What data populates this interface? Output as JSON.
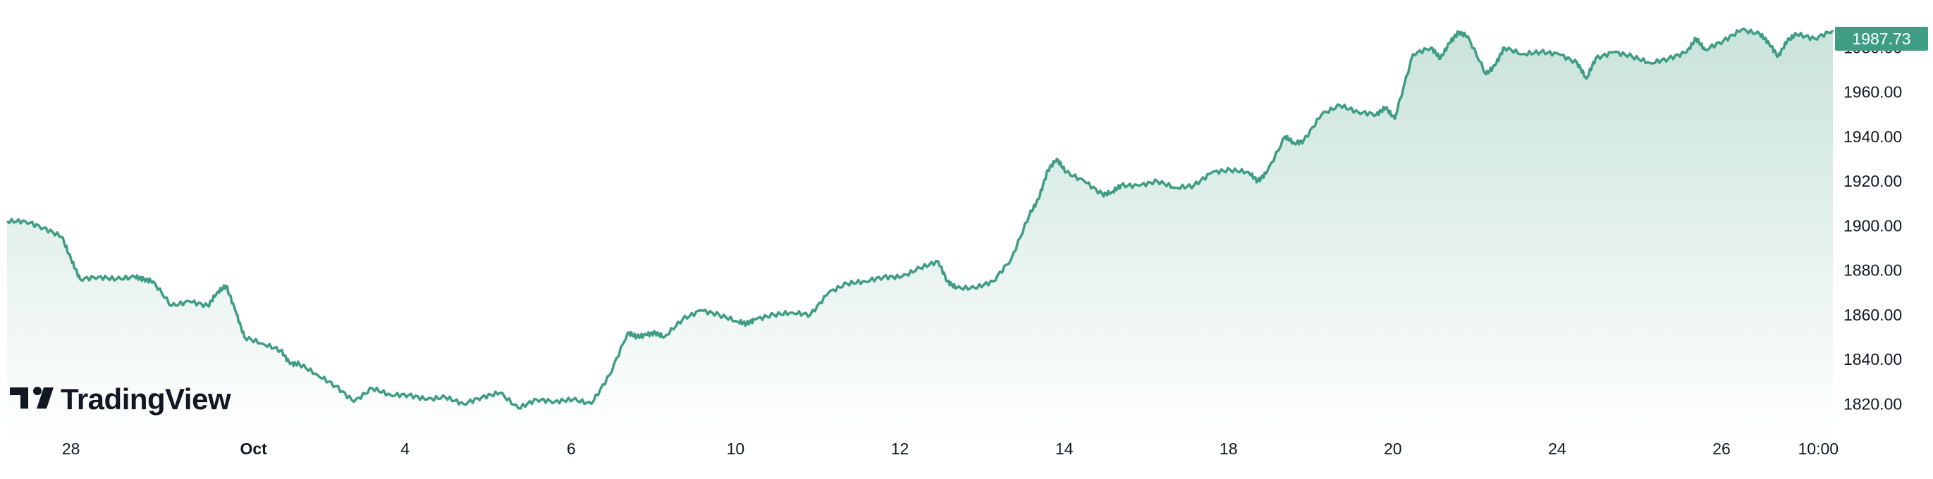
{
  "chart_data": {
    "type": "area",
    "colors": {
      "line": "#3f9d83",
      "fill_top": "#c9e3da",
      "fill_bottom": "#ffffff",
      "price_label_bg": "#3f9d83"
    },
    "ylim": [
      1810,
      1995
    ],
    "y_ticks": [
      "1820.00",
      "1840.00",
      "1860.00",
      "1880.00",
      "1900.00",
      "1920.00",
      "1940.00",
      "1960.00",
      "1980.00"
    ],
    "x_ticks": [
      {
        "label": "28",
        "pos": 0.035,
        "bold": false
      },
      {
        "label": "Oct",
        "pos": 0.135,
        "bold": true
      },
      {
        "label": "4",
        "pos": 0.218,
        "bold": false
      },
      {
        "label": "6",
        "pos": 0.309,
        "bold": false
      },
      {
        "label": "10",
        "pos": 0.399,
        "bold": false
      },
      {
        "label": "12",
        "pos": 0.489,
        "bold": false
      },
      {
        "label": "14",
        "pos": 0.579,
        "bold": false
      },
      {
        "label": "18",
        "pos": 0.669,
        "bold": false
      },
      {
        "label": "20",
        "pos": 0.759,
        "bold": false
      },
      {
        "label": "24",
        "pos": 0.849,
        "bold": false
      },
      {
        "label": "26",
        "pos": 0.939,
        "bold": false
      },
      {
        "label": "10:00",
        "pos": 0.992,
        "bold": false
      }
    ],
    "last_price": "1987.73",
    "series": [
      {
        "x": [
          0,
          0.01,
          0.02,
          0.03,
          0.035,
          0.04,
          0.05,
          0.06,
          0.07,
          0.075,
          0.08,
          0.09,
          0.1,
          0.11,
          0.115,
          0.12,
          0.125,
          0.13,
          0.14,
          0.15,
          0.155,
          0.16,
          0.17,
          0.18,
          0.19,
          0.2,
          0.21,
          0.22,
          0.23,
          0.24,
          0.25,
          0.26,
          0.27,
          0.28,
          0.29,
          0.3,
          0.31,
          0.32,
          0.33,
          0.34,
          0.345,
          0.35,
          0.355,
          0.36,
          0.37,
          0.38,
          0.39,
          0.4,
          0.405,
          0.41,
          0.42,
          0.43,
          0.44,
          0.45,
          0.46,
          0.47,
          0.48,
          0.49,
          0.5,
          0.51,
          0.515,
          0.52,
          0.53,
          0.54,
          0.55,
          0.56,
          0.565,
          0.57,
          0.575,
          0.58,
          0.59,
          0.6,
          0.605,
          0.61,
          0.62,
          0.63,
          0.64,
          0.65,
          0.66,
          0.67,
          0.68,
          0.685,
          0.69,
          0.7,
          0.705,
          0.71,
          0.72,
          0.73,
          0.74,
          0.75,
          0.755,
          0.76,
          0.77,
          0.78,
          0.785,
          0.79,
          0.795,
          0.8,
          0.81,
          0.815,
          0.82,
          0.83,
          0.84,
          0.85,
          0.86,
          0.865,
          0.87,
          0.88,
          0.89,
          0.9,
          0.91,
          0.92,
          0.925,
          0.93,
          0.94,
          0.95,
          0.96,
          0.965,
          0.97,
          0.975,
          0.98,
          0.99,
          1.0
        ],
        "values": [
          1902,
          1902,
          1899,
          1895,
          1885,
          1876,
          1877,
          1876,
          1877,
          1876,
          1875,
          1864,
          1866,
          1864,
          1870,
          1873,
          1862,
          1850,
          1847,
          1844,
          1838,
          1838,
          1833,
          1828,
          1821,
          1827,
          1824,
          1824,
          1822,
          1823,
          1820,
          1823,
          1825,
          1818,
          1822,
          1821,
          1822,
          1820,
          1833,
          1852,
          1850,
          1851,
          1852,
          1850,
          1858,
          1862,
          1860,
          1857,
          1856,
          1858,
          1860,
          1861,
          1860,
          1870,
          1874,
          1875,
          1877,
          1877,
          1881,
          1884,
          1875,
          1872,
          1872,
          1875,
          1885,
          1905,
          1912,
          1925,
          1930,
          1924,
          1920,
          1914,
          1915,
          1918,
          1918,
          1920,
          1917,
          1918,
          1924,
          1925,
          1924,
          1920,
          1924,
          1940,
          1937,
          1938,
          1950,
          1954,
          1951,
          1950,
          1953,
          1948,
          1977,
          1980,
          1975,
          1982,
          1987,
          1985,
          1968,
          1972,
          1980,
          1977,
          1978,
          1977,
          1973,
          1966,
          1975,
          1978,
          1976,
          1973,
          1975,
          1978,
          1984,
          1979,
          1983,
          1988,
          1986,
          1982,
          1976,
          1983,
          1986,
          1984,
          1987.73
        ]
      }
    ]
  },
  "branding": {
    "logo_text": "TradingView"
  }
}
